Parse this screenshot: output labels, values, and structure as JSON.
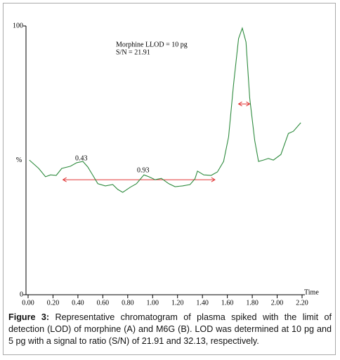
{
  "chart_data": {
    "type": "line",
    "x": [
      0.01,
      0.085,
      0.14,
      0.18,
      0.226,
      0.27,
      0.34,
      0.39,
      0.44,
      0.48,
      0.52,
      0.56,
      0.62,
      0.68,
      0.72,
      0.76,
      0.82,
      0.87,
      0.93,
      0.97,
      1.02,
      1.07,
      1.13,
      1.18,
      1.24,
      1.3,
      1.34,
      1.36,
      1.41,
      1.47,
      1.52,
      1.57,
      1.61,
      1.65,
      1.69,
      1.72,
      1.75,
      1.78,
      1.82,
      1.85,
      1.89,
      1.93,
      1.97,
      2.03,
      2.09,
      2.13,
      2.19
    ],
    "series": [
      {
        "color": "#2e8b3e",
        "values": [
          50.1,
          47,
          43.9,
          44.6,
          44.4,
          47,
          47.8,
          49.1,
          49.6,
          47.5,
          44.4,
          41.3,
          40.5,
          41,
          39.2,
          38.1,
          40,
          41.3,
          44.6,
          43.9,
          42.8,
          43.3,
          41.3,
          40.2,
          40.5,
          41,
          43.1,
          46,
          44.6,
          44.4,
          45.7,
          49.6,
          58.7,
          78.3,
          95.3,
          99.2,
          94,
          73.1,
          57.4,
          49.6,
          50.1,
          50.7,
          50.1,
          52.2,
          60,
          60.8,
          64
        ]
      }
    ],
    "xlim": [
      0,
      2.2
    ],
    "ylim": [
      0,
      100
    ],
    "xticks": [
      {
        "value": 0,
        "label": "0.00"
      },
      {
        "value": 0.2,
        "label": "0.20"
      },
      {
        "value": 0.4,
        "label": "0.40"
      },
      {
        "value": 0.6,
        "label": "0.60"
      },
      {
        "value": 0.8,
        "label": "0.80"
      },
      {
        "value": 1.0,
        "label": "1.00"
      },
      {
        "value": 1.2,
        "label": "1.20"
      },
      {
        "value": 1.4,
        "label": "1.40"
      },
      {
        "value": 1.6,
        "label": "1.60"
      },
      {
        "value": 1.8,
        "label": "1.80"
      },
      {
        "value": 2.0,
        "label": "2.00"
      },
      {
        "value": 2.2,
        "label": "2.20"
      }
    ],
    "yticks": [
      0,
      100
    ],
    "x_label": "Time",
    "y_label": "%",
    "annotations": [
      "0.43",
      "0.93",
      "Morphine LLOD = 10 pg",
      "S/N = 21.91"
    ],
    "ranges": [
      {
        "x": [
          0.28,
          1.5
        ],
        "y": 42.8,
        "color": "#e03030"
      },
      {
        "x": [
          1.69,
          1.78
        ],
        "y": 71,
        "color": "#e03030"
      }
    ]
  },
  "caption": {
    "label": "Figure 3:",
    "text": "Representative chromatogram of plasma spiked with the limit of detection (LOD) of morphine (A) and M6G (B). LOD was determined at 10 pg and 5 pg with a signal to ratio (S/N) of 21.91 and 32.13, respectively."
  }
}
